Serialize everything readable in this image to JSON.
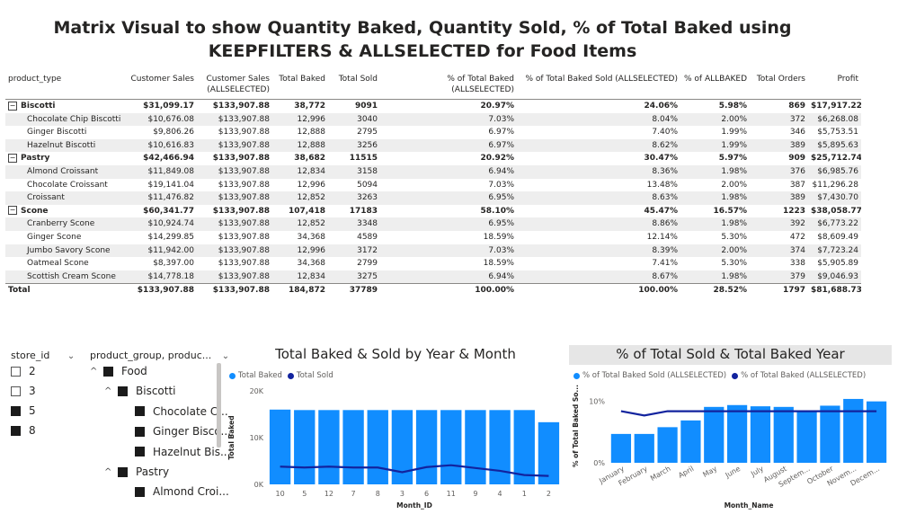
{
  "report_title": "Matrix Visual to show Quantity Baked, Quantity Sold, % of Total Baked using KEEPFILTERS & ALLSELECTED for Food Items",
  "matrix": {
    "columns": [
      "product_type",
      "Customer Sales",
      "Customer Sales (ALLSELECTED)",
      "Total Baked",
      "Total Sold",
      "% of Total Baked (ALLSELECTED)",
      "% of Total Baked Sold (ALLSELECTED)",
      "% of ALLBAKED",
      "Total Orders",
      "Profit"
    ],
    "rows": [
      {
        "kind": "group",
        "expander": "⊟",
        "label": "Biscotti",
        "cells": [
          "$31,099.17",
          "$133,907.88",
          "38,772",
          "9091",
          "20.97%",
          "24.06%",
          "5.98%",
          "869",
          "$17,917.22"
        ]
      },
      {
        "kind": "child",
        "label": "Chocolate Chip Biscotti",
        "cells": [
          "$10,676.08",
          "$133,907.88",
          "12,996",
          "3040",
          "7.03%",
          "8.04%",
          "2.00%",
          "372",
          "$6,268.08"
        ]
      },
      {
        "kind": "child",
        "label": "Ginger Biscotti",
        "cells": [
          "$9,806.26",
          "$133,907.88",
          "12,888",
          "2795",
          "6.97%",
          "7.40%",
          "1.99%",
          "346",
          "$5,753.51"
        ]
      },
      {
        "kind": "child",
        "label": "Hazelnut Biscotti",
        "cells": [
          "$10,616.83",
          "$133,907.88",
          "12,888",
          "3256",
          "6.97%",
          "8.62%",
          "1.99%",
          "389",
          "$5,895.63"
        ]
      },
      {
        "kind": "group",
        "expander": "⊟",
        "label": "Pastry",
        "cells": [
          "$42,466.94",
          "$133,907.88",
          "38,682",
          "11515",
          "20.92%",
          "30.47%",
          "5.97%",
          "909",
          "$25,712.74"
        ]
      },
      {
        "kind": "child",
        "label": "Almond Croissant",
        "cells": [
          "$11,849.08",
          "$133,907.88",
          "12,834",
          "3158",
          "6.94%",
          "8.36%",
          "1.98%",
          "376",
          "$6,985.76"
        ]
      },
      {
        "kind": "child",
        "label": "Chocolate Croissant",
        "cells": [
          "$19,141.04",
          "$133,907.88",
          "12,996",
          "5094",
          "7.03%",
          "13.48%",
          "2.00%",
          "387",
          "$11,296.28"
        ]
      },
      {
        "kind": "child",
        "label": "Croissant",
        "cells": [
          "$11,476.82",
          "$133,907.88",
          "12,852",
          "3263",
          "6.95%",
          "8.63%",
          "1.98%",
          "389",
          "$7,430.70"
        ]
      },
      {
        "kind": "group",
        "expander": "⊟",
        "label": "Scone",
        "cells": [
          "$60,341.77",
          "$133,907.88",
          "107,418",
          "17183",
          "58.10%",
          "45.47%",
          "16.57%",
          "1223",
          "$38,058.77"
        ]
      },
      {
        "kind": "child",
        "label": "Cranberry Scone",
        "cells": [
          "$10,924.74",
          "$133,907.88",
          "12,852",
          "3348",
          "6.95%",
          "8.86%",
          "1.98%",
          "392",
          "$6,773.22"
        ]
      },
      {
        "kind": "child",
        "label": "Ginger Scone",
        "cells": [
          "$14,299.85",
          "$133,907.88",
          "34,368",
          "4589",
          "18.59%",
          "12.14%",
          "5.30%",
          "472",
          "$8,609.49"
        ]
      },
      {
        "kind": "child",
        "label": "Jumbo Savory Scone",
        "cells": [
          "$11,942.00",
          "$133,907.88",
          "12,996",
          "3172",
          "7.03%",
          "8.39%",
          "2.00%",
          "374",
          "$7,723.24"
        ]
      },
      {
        "kind": "child",
        "label": "Oatmeal Scone",
        "cells": [
          "$8,397.00",
          "$133,907.88",
          "34,368",
          "2799",
          "18.59%",
          "7.41%",
          "5.30%",
          "338",
          "$5,905.89"
        ]
      },
      {
        "kind": "child",
        "label": "Scottish Cream Scone",
        "cells": [
          "$14,778.18",
          "$133,907.88",
          "12,834",
          "3275",
          "6.94%",
          "8.67%",
          "1.98%",
          "379",
          "$9,046.93"
        ]
      },
      {
        "kind": "total",
        "label": "Total",
        "cells": [
          "$133,907.88",
          "$133,907.88",
          "184,872",
          "37789",
          "100.00%",
          "100.00%",
          "28.52%",
          "1797",
          "$81,688.73"
        ]
      }
    ]
  },
  "store_slicer": {
    "header": "store_id",
    "items": [
      {
        "label": "2",
        "checked": false
      },
      {
        "label": "3",
        "checked": false
      },
      {
        "label": "5",
        "checked": true
      },
      {
        "label": "8",
        "checked": true
      }
    ]
  },
  "product_slicer": {
    "header": "product_group, produc...",
    "items": [
      {
        "label": "Food",
        "level": 0,
        "expandable": true
      },
      {
        "label": "Biscotti",
        "level": 1,
        "expandable": true
      },
      {
        "label": "Chocolate C...",
        "level": 2,
        "expandable": false
      },
      {
        "label": "Ginger Bisco...",
        "level": 2,
        "expandable": false
      },
      {
        "label": "Hazelnut Bis...",
        "level": 2,
        "expandable": false
      },
      {
        "label": "Pastry",
        "level": 1,
        "expandable": true
      },
      {
        "label": "Almond Croi...",
        "level": 2,
        "expandable": false
      }
    ]
  },
  "colors": {
    "bar": "#118dff",
    "line": "#12239e",
    "accent_gray": "#e6e6e6"
  },
  "chart_data": [
    {
      "type": "bar",
      "title": "Total Baked & Sold by Year & Month",
      "xlabel": "Month_ID",
      "ylabel": "Total Baked",
      "ylim": [
        0,
        20000
      ],
      "yticks": [
        "0K",
        "10K",
        "20K"
      ],
      "legend": "top-left",
      "categories": [
        "10",
        "5",
        "12",
        "7",
        "8",
        "3",
        "6",
        "11",
        "9",
        "4",
        "1",
        "2"
      ],
      "series": [
        {
          "name": "Total Baked",
          "kind": "bar",
          "values": [
            16000,
            15900,
            15900,
            15900,
            15900,
            15900,
            15900,
            15900,
            15900,
            15900,
            15900,
            13300
          ]
        },
        {
          "name": "Total Sold",
          "kind": "line",
          "values": [
            3800,
            3600,
            3800,
            3600,
            3600,
            2600,
            3700,
            4100,
            3500,
            2900,
            2000,
            1800
          ]
        }
      ]
    },
    {
      "type": "bar",
      "title": "% of Total Sold & Total Baked Year",
      "xlabel": "Month_Name",
      "ylabel": "% of Total Baked So...",
      "ylim": [
        0,
        0.12
      ],
      "yticks": [
        "0%",
        "10%"
      ],
      "legend": "top-left",
      "categories": [
        "January",
        "February",
        "March",
        "April",
        "May",
        "June",
        "July",
        "August",
        "Septem...",
        "October",
        "Novem...",
        "Decem..."
      ],
      "series": [
        {
          "name": "% of Total Baked Sold (ALLSELECTED)",
          "kind": "bar",
          "values": [
            0.047,
            0.047,
            0.058,
            0.069,
            0.091,
            0.094,
            0.092,
            0.091,
            0.085,
            0.093,
            0.104,
            0.1
          ]
        },
        {
          "name": "% of Total Baked (ALLSELECTED)",
          "kind": "line",
          "values": [
            0.084,
            0.077,
            0.084,
            0.084,
            0.084,
            0.084,
            0.084,
            0.084,
            0.084,
            0.084,
            0.084,
            0.084
          ]
        }
      ]
    }
  ]
}
